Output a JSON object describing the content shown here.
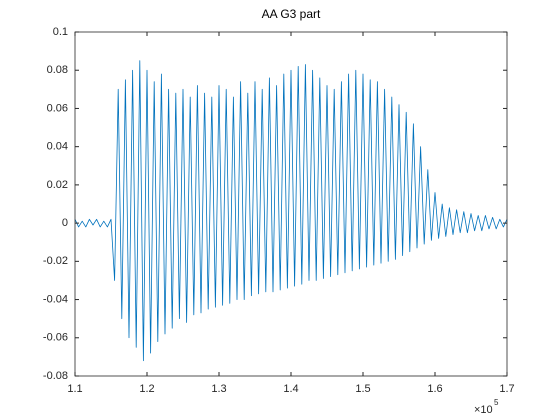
{
  "chart_data": {
    "type": "line",
    "title": "AA G3 part",
    "color": "#0072bd",
    "x": [
      110000,
      110500,
      111000,
      111500,
      112000,
      112500,
      113000,
      113500,
      114000,
      114500,
      115000,
      115500,
      116000,
      116500,
      117000,
      117500,
      118000,
      118500,
      119000,
      119500,
      120000,
      120500,
      121000,
      121500,
      122000,
      122500,
      123000,
      123500,
      124000,
      124500,
      125000,
      125500,
      126000,
      126500,
      127000,
      127500,
      128000,
      128500,
      129000,
      129500,
      130000,
      130500,
      131000,
      131500,
      132000,
      132500,
      133000,
      133500,
      134000,
      134500,
      135000,
      135500,
      136000,
      136500,
      137000,
      137500,
      138000,
      138500,
      139000,
      139500,
      140000,
      140500,
      141000,
      141500,
      142000,
      142500,
      143000,
      143500,
      144000,
      144500,
      145000,
      145500,
      146000,
      146500,
      147000,
      147500,
      148000,
      148500,
      149000,
      149500,
      150000,
      150500,
      151000,
      151500,
      152000,
      152500,
      153000,
      153500,
      154000,
      154500,
      155000,
      155500,
      156000,
      156500,
      157000,
      157500,
      158000,
      158500,
      159000,
      159500,
      160000,
      160500,
      161000,
      161500,
      162000,
      162500,
      163000,
      163500,
      164000,
      164500,
      165000,
      165500,
      166000,
      166500,
      167000,
      167500,
      168000,
      168500,
      169000,
      169500,
      170000
    ],
    "values": [
      0.002,
      -0.002,
      0.001,
      -0.002,
      0.002,
      -0.001,
      0.002,
      -0.002,
      0.001,
      -0.002,
      0.002,
      -0.03,
      0.07,
      -0.05,
      0.075,
      -0.06,
      0.08,
      -0.065,
      0.085,
      -0.072,
      0.08,
      -0.068,
      0.074,
      -0.062,
      0.078,
      -0.058,
      0.07,
      -0.055,
      0.068,
      -0.05,
      0.07,
      -0.052,
      0.066,
      -0.048,
      0.072,
      -0.047,
      0.068,
      -0.045,
      0.066,
      -0.044,
      0.072,
      -0.043,
      0.07,
      -0.042,
      0.066,
      -0.04,
      0.074,
      -0.04,
      0.068,
      -0.038,
      0.074,
      -0.037,
      0.07,
      -0.036,
      0.076,
      -0.036,
      0.072,
      -0.035,
      0.078,
      -0.034,
      0.08,
      -0.033,
      0.082,
      -0.032,
      0.083,
      -0.03,
      0.08,
      -0.03,
      0.076,
      -0.029,
      0.072,
      -0.028,
      0.07,
      -0.027,
      0.074,
      -0.026,
      0.078,
      -0.025,
      0.08,
      -0.024,
      0.078,
      -0.023,
      0.075,
      -0.022,
      0.074,
      -0.021,
      0.07,
      -0.02,
      0.066,
      -0.019,
      0.062,
      -0.017,
      0.058,
      -0.015,
      0.052,
      -0.013,
      0.04,
      -0.011,
      0.028,
      -0.009,
      0.016,
      -0.008,
      0.01,
      -0.007,
      0.008,
      -0.006,
      0.007,
      -0.005,
      0.006,
      -0.005,
      0.005,
      -0.004,
      0.004,
      -0.004,
      0.004,
      -0.003,
      0.003,
      -0.003,
      0.002,
      -0.002,
      0.002
    ],
    "xlim": [
      110000,
      170000
    ],
    "xticks": [
      {
        "value": 110000,
        "label": "1.1"
      },
      {
        "value": 120000,
        "label": "1.2"
      },
      {
        "value": 130000,
        "label": "1.3"
      },
      {
        "value": 140000,
        "label": "1.4"
      },
      {
        "value": 150000,
        "label": "1.5"
      },
      {
        "value": 160000,
        "label": "1.6"
      },
      {
        "value": 170000,
        "label": "1.7"
      }
    ],
    "x_exponent_base": "×10",
    "x_exponent": "5",
    "ylim": [
      -0.08,
      0.1
    ],
    "yticks": [
      -0.08,
      -0.06,
      -0.04,
      -0.02,
      0,
      0.02,
      0.04,
      0.06,
      0.08,
      0.1
    ],
    "grid": false
  }
}
